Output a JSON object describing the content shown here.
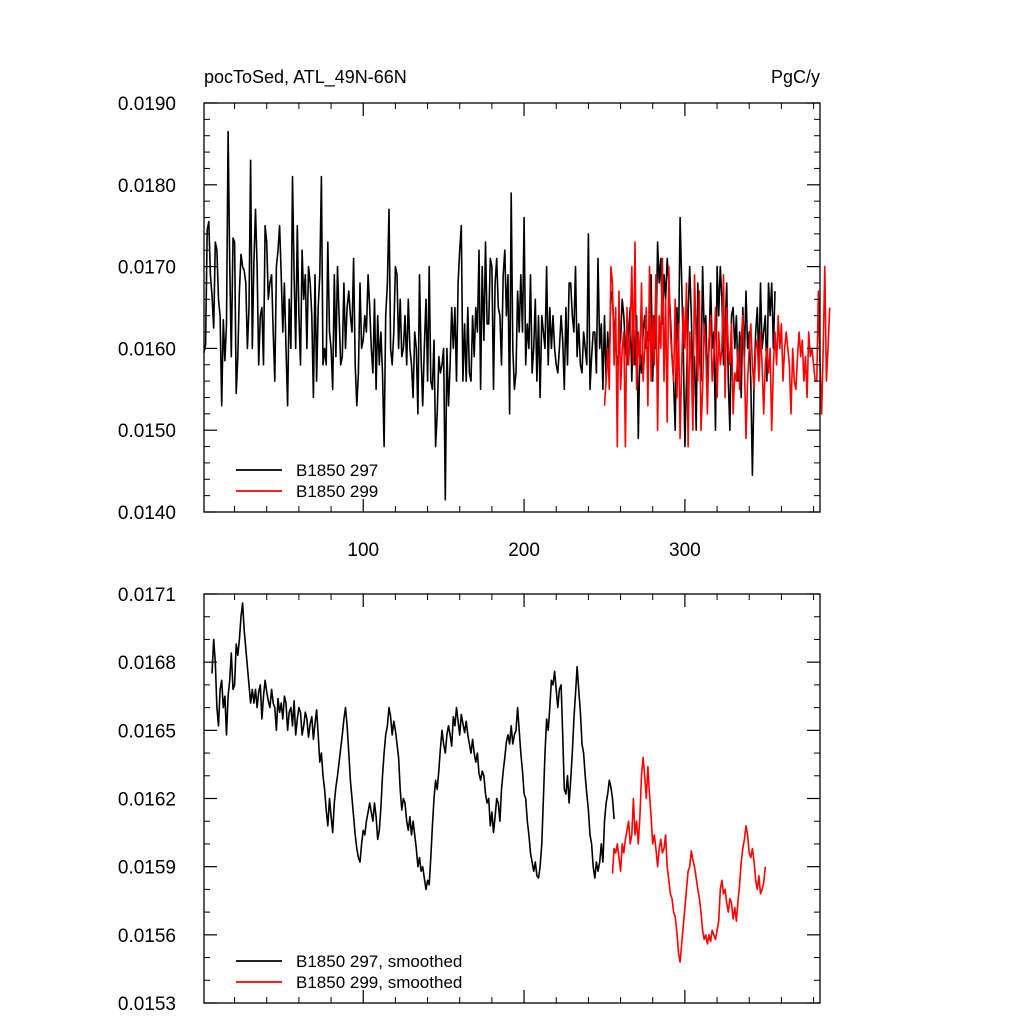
{
  "chart_data": [
    {
      "type": "line",
      "title": "pocToSed, ATL_49N-66N",
      "units": "PgC/y",
      "xlim": [
        1,
        384
      ],
      "ylim": [
        0.014,
        0.019
      ],
      "xticks": [
        100,
        200,
        300
      ],
      "xticklabels": [
        "100",
        "200",
        "300"
      ],
      "yticks": [
        0.014,
        0.015,
        0.016,
        0.017,
        0.018,
        0.019
      ],
      "yticklabels": [
        "0.0140",
        "0.0150",
        "0.0160",
        "0.0170",
        "0.0180",
        "0.0190"
      ],
      "legend_position": "bottom-left",
      "series": [
        {
          "name": "B1850 297",
          "color": "#000000",
          "x_start": 1,
          "values": [
            0.01595,
            0.01605,
            0.01745,
            0.01755,
            0.0169,
            0.01665,
            0.01625,
            0.0173,
            0.0172,
            0.0166,
            0.0164,
            0.0153,
            0.01635,
            0.01585,
            0.0163,
            0.01865,
            0.01705,
            0.0159,
            0.01735,
            0.0173,
            0.01545,
            0.0159,
            0.0167,
            0.01715,
            0.017,
            0.01695,
            0.0168,
            0.016,
            0.0165,
            0.0183,
            0.016,
            0.01705,
            0.0177,
            0.017,
            0.0158,
            0.0164,
            0.0165,
            0.0158,
            0.0175,
            0.0173,
            0.0166,
            0.0168,
            0.0169,
            0.0162,
            0.0156,
            0.017,
            0.0172,
            0.0175,
            0.0169,
            0.0162,
            0.0168,
            0.016,
            0.0153,
            0.0166,
            0.016,
            0.0181,
            0.0169,
            0.016,
            0.0175,
            0.0164,
            0.0158,
            0.0172,
            0.0166,
            0.0169,
            0.016,
            0.017,
            0.0168,
            0.0164,
            0.0154,
            0.0169,
            0.0156,
            0.0165,
            0.0169,
            0.0181,
            0.0158,
            0.016,
            0.0158,
            0.0173,
            0.0162,
            0.016,
            0.0155,
            0.0169,
            0.0159,
            0.017,
            0.0164,
            0.0158,
            0.0159,
            0.0168,
            0.016,
            0.0165,
            0.0167,
            0.0164,
            0.0162,
            0.0171,
            0.0158,
            0.0153,
            0.0157,
            0.0168,
            0.016,
            0.0161,
            0.0164,
            0.0162,
            0.0169,
            0.0165,
            0.016,
            0.0157,
            0.0166,
            0.0155,
            0.0164,
            0.0158,
            0.0162,
            0.0157,
            0.0148,
            0.0164,
            0.0168,
            0.0177,
            0.016,
            0.0158,
            0.0162,
            0.017,
            0.0169,
            0.016,
            0.0166,
            0.0159,
            0.016,
            0.0164,
            0.0158,
            0.0166,
            0.016,
            0.0158,
            0.0154,
            0.0162,
            0.016,
            0.0152,
            0.0169,
            0.0159,
            0.0153,
            0.016,
            0.0166,
            0.0156,
            0.017,
            0.0156,
            0.0155,
            0.0161,
            0.0148,
            0.0152,
            0.0159,
            0.0157,
            0.0158,
            0.016,
            0.01415,
            0.016,
            0.0153,
            0.0158,
            0.0165,
            0.016,
            0.0165,
            0.0156,
            0.0168,
            0.0172,
            0.0175,
            0.0156,
            0.0163,
            0.0156,
            0.0165,
            0.0157,
            0.0156,
            0.0164,
            0.0159,
            0.0165,
            0.0162,
            0.0172,
            0.0155,
            0.017,
            0.0161,
            0.0173,
            0.0163,
            0.0163,
            0.0171,
            0.017,
            0.0155,
            0.0168,
            0.0171,
            0.0165,
            0.0164,
            0.0158,
            0.0169,
            0.0172,
            0.0164,
            0.0169,
            0.0152,
            0.0179,
            0.016,
            0.0155,
            0.0157,
            0.0167,
            0.0162,
            0.0169,
            0.0162,
            0.0176,
            0.0158,
            0.0163,
            0.016,
            0.0169,
            0.0157,
            0.016,
            0.0166,
            0.0156,
            0.0164,
            0.0154,
            0.0164,
            0.0162,
            0.016,
            0.017,
            0.0158,
            0.0165,
            0.016,
            0.0164,
            0.016,
            0.0158,
            0.0157,
            0.016,
            0.0164,
            0.0161,
            0.0155,
            0.0165,
            0.0158,
            0.0168,
            0.0168,
            0.0164,
            0.0162,
            0.017,
            0.0159,
            0.0163,
            0.0158,
            0.0157,
            0.0162,
            0.016,
            0.0158,
            0.0174,
            0.0155,
            0.0159,
            0.0162,
            0.0162,
            0.0157,
            0.0171,
            0.016,
            0.0163,
            0.0155,
            0.0164,
            0.0156,
            0.0162,
            0.0158,
            0.0167,
            0.0166,
            0.0162,
            0.016,
            0.0158,
            0.016,
            0.0161,
            0.0166,
            0.0164,
            0.016,
            0.0158,
            0.0162,
            0.0165,
            0.0156,
            0.0164,
            0.0158,
            0.0164,
            0.0149,
            0.016,
            0.0157,
            0.0162,
            0.0164,
            0.016,
            0.0162,
            0.0161,
            0.0169,
            0.0156,
            0.0164,
            0.016,
            0.0173,
            0.0168,
            0.0171,
            0.0163,
            0.0169,
            0.0166,
            0.0171,
            0.0168,
            0.0164,
            0.0159,
            0.0156,
            0.015,
            0.0165,
            0.016,
            0.0176,
            0.0168,
            0.016,
            0.0148,
            0.0156,
            0.0164,
            0.017,
            0.0164,
            0.0156,
            0.0159,
            0.015,
            0.0168,
            0.0159,
            0.0156,
            0.017,
            0.0162,
            0.0164,
            0.0156,
            0.016,
            0.0168,
            0.016,
            0.0162,
            0.015,
            0.017,
            0.0164,
            0.017,
            0.0166,
            0.0158,
            0.0162,
            0.0168,
            0.0156,
            0.015,
            0.0164,
            0.0165,
            0.016,
            0.0164,
            0.0156,
            0.0162,
            0.0154,
            0.0165,
            0.0159,
            0.0167,
            0.016,
            0.0162,
            0.0156,
            0.01445,
            0.0156,
            0.0162,
            0.0165,
            0.0158,
            0.0168,
            0.016,
            0.0162,
            0.0164,
            0.0156,
            0.0168,
            0.0164,
            0.0168,
            0.016,
            0.0167
          ]
        },
        {
          "name": "B1850 299",
          "color": "#ff0000",
          "x_start": 250,
          "values": [
            0.0153,
            0.0156,
            0.016,
            0.0155,
            0.017,
            0.0168,
            0.0158,
            0.0165,
            0.0148,
            0.0167,
            0.0155,
            0.016,
            0.0162,
            0.0148,
            0.0165,
            0.0158,
            0.0162,
            0.017,
            0.0158,
            0.0173,
            0.0155,
            0.0162,
            0.0158,
            0.0168,
            0.0156,
            0.016,
            0.0165,
            0.0153,
            0.017,
            0.0156,
            0.0164,
            0.0158,
            0.0169,
            0.015,
            0.0164,
            0.016,
            0.0171,
            0.0156,
            0.0166,
            0.0151,
            0.017,
            0.0162,
            0.0159,
            0.0156,
            0.0166,
            0.0154,
            0.0163,
            0.0149,
            0.0158,
            0.0165,
            0.016,
            0.0168,
            0.0148,
            0.0162,
            0.0158,
            0.015,
            0.0169,
            0.0161,
            0.0156,
            0.0167,
            0.015,
            0.0155,
            0.0163,
            0.016,
            0.0152,
            0.0161,
            0.0164,
            0.0156,
            0.0159,
            0.0165,
            0.0154,
            0.0162,
            0.0158,
            0.016,
            0.0169,
            0.0154,
            0.0165,
            0.016,
            0.0158,
            0.0163,
            0.0152,
            0.0157,
            0.0156,
            0.016,
            0.0155,
            0.0161,
            0.0164,
            0.0158,
            0.0149,
            0.0156,
            0.016,
            0.0163,
            0.0158,
            0.0155,
            0.016,
            0.0161,
            0.0156,
            0.0162,
            0.0158,
            0.0152,
            0.0158,
            0.016,
            0.0157,
            0.016,
            0.015,
            0.0158,
            0.0162,
            0.0158,
            0.0164,
            0.016,
            0.0163,
            0.0156,
            0.016,
            0.0162,
            0.016,
            0.0158,
            0.0152,
            0.016,
            0.0156,
            0.0155,
            0.0159,
            0.0162,
            0.0159,
            0.0161,
            0.0156,
            0.0159,
            0.0154,
            0.0162,
            0.0159,
            0.016,
            0.0158,
            0.0156,
            0.0156,
            0.0167,
            0.0158,
            0.0152,
            0.016,
            0.017,
            0.0156,
            0.016,
            0.0165
          ]
        }
      ]
    },
    {
      "type": "line",
      "xlim": [
        1,
        384
      ],
      "ylim": [
        0.0153,
        0.0171
      ],
      "xticks": [
        100,
        200,
        300
      ],
      "yticks": [
        0.0153,
        0.0156,
        0.0159,
        0.0162,
        0.0165,
        0.0168,
        0.0171
      ],
      "yticklabels": [
        "0.0153",
        "0.0156",
        "0.0159",
        "0.0162",
        "0.0165",
        "0.0168",
        "0.0171"
      ],
      "legend_position": "bottom-left",
      "series": [
        {
          "name": "B1850 297, smoothed",
          "color": "#000000",
          "x_start": 6,
          "values": [
            0.01675,
            0.0169,
            0.0168,
            0.0166,
            0.01652,
            0.01668,
            0.01672,
            0.0166,
            0.01665,
            0.01648,
            0.01665,
            0.01672,
            0.01684,
            0.01668,
            0.0167,
            0.01688,
            0.01683,
            0.0169,
            0.017,
            0.01706,
            0.01694,
            0.01686,
            0.01678,
            0.0167,
            0.01662,
            0.01668,
            0.01662,
            0.01668,
            0.0166,
            0.01667,
            0.0167,
            0.01655,
            0.01665,
            0.01672,
            0.01667,
            0.01663,
            0.0166,
            0.01668,
            0.01662,
            0.0166,
            0.0165,
            0.01664,
            0.01658,
            0.01662,
            0.01655,
            0.01665,
            0.01662,
            0.0165,
            0.01658,
            0.0166,
            0.01652,
            0.01663,
            0.01648,
            0.01655,
            0.0166,
            0.01658,
            0.01648,
            0.01652,
            0.01658,
            0.01655,
            0.01647,
            0.01653,
            0.01656,
            0.01646,
            0.01653,
            0.01659,
            0.01648,
            0.01636,
            0.0164,
            0.0163,
            0.01624,
            0.01615,
            0.01608,
            0.0162,
            0.01612,
            0.01605,
            0.01618,
            0.01625,
            0.0163,
            0.01636,
            0.01642,
            0.01648,
            0.01655,
            0.0166,
            0.01652,
            0.0164,
            0.01628,
            0.0162,
            0.01612,
            0.01604,
            0.01598,
            0.01594,
            0.01592,
            0.016,
            0.01606,
            0.01604,
            0.0161,
            0.01614,
            0.01618,
            0.01614,
            0.0161,
            0.01618,
            0.01612,
            0.01602,
            0.01606,
            0.01616,
            0.0163,
            0.0164,
            0.01648,
            0.01652,
            0.0166,
            0.01656,
            0.01648,
            0.01654,
            0.0165,
            0.01644,
            0.01638,
            0.01624,
            0.01615,
            0.0162,
            0.01618,
            0.0161,
            0.01606,
            0.01612,
            0.01604,
            0.0161,
            0.01604,
            0.01598,
            0.0159,
            0.01594,
            0.01588,
            0.0159,
            0.01585,
            0.0158,
            0.01584,
            0.01582,
            0.01594,
            0.01608,
            0.0162,
            0.01628,
            0.01624,
            0.01632,
            0.01642,
            0.0165,
            0.01644,
            0.0164,
            0.01648,
            0.01652,
            0.01648,
            0.01643,
            0.01656,
            0.01652,
            0.0166,
            0.01654,
            0.01648,
            0.01657,
            0.01653,
            0.01649,
            0.01654,
            0.01648,
            0.01644,
            0.0164,
            0.01646,
            0.0164,
            0.01636,
            0.0164,
            0.01631,
            0.01628,
            0.01632,
            0.0163,
            0.01622,
            0.01618,
            0.0162,
            0.01608,
            0.01614,
            0.01605,
            0.01612,
            0.0162,
            0.01618,
            0.0161,
            0.01624,
            0.01632,
            0.01638,
            0.01645,
            0.01648,
            0.01644,
            0.01652,
            0.01644,
            0.01648,
            0.0165,
            0.0166,
            0.0165,
            0.0164,
            0.01632,
            0.01622,
            0.0162,
            0.0161,
            0.01604,
            0.01596,
            0.01592,
            0.01588,
            0.01592,
            0.01586,
            0.01585,
            0.0159,
            0.016,
            0.0162,
            0.0164,
            0.01655,
            0.0165,
            0.0166,
            0.01672,
            0.0167,
            0.01676,
            0.01668,
            0.0166,
            0.01668,
            0.0167,
            0.01648,
            0.01624,
            0.01622,
            0.0163,
            0.01618,
            0.01628,
            0.0164,
            0.01655,
            0.01666,
            0.01678,
            0.01668,
            0.01658,
            0.01644,
            0.0164,
            0.0163,
            0.01622,
            0.01615,
            0.01604,
            0.016,
            0.0159,
            0.01585,
            0.01592,
            0.01588,
            0.01592,
            0.016,
            0.01592,
            0.0161,
            0.01618,
            0.01622,
            0.01628,
            0.01625,
            0.0162,
            0.01611
          ]
        },
        {
          "name": "B1850 299, smoothed",
          "color": "#ff0000",
          "x_start": 255,
          "values": [
            0.01587,
            0.01598,
            0.01596,
            0.016,
            0.01594,
            0.01588,
            0.016,
            0.01596,
            0.01602,
            0.01606,
            0.0161,
            0.016,
            0.01604,
            0.0162,
            0.01604,
            0.0161,
            0.016,
            0.01612,
            0.0163,
            0.01638,
            0.0163,
            0.0162,
            0.01634,
            0.01622,
            0.01612,
            0.016,
            0.01604,
            0.01598,
            0.0159,
            0.01598,
            0.01602,
            0.01596,
            0.01598,
            0.01604,
            0.0159,
            0.01584,
            0.01578,
            0.01576,
            0.0157,
            0.01568,
            0.01561,
            0.01552,
            0.01548,
            0.01556,
            0.01564,
            0.01572,
            0.0158,
            0.01588,
            0.0159,
            0.01597,
            0.01593,
            0.0159,
            0.01585,
            0.0158,
            0.01576,
            0.0157,
            0.01562,
            0.01558,
            0.0156,
            0.01556,
            0.0156,
            0.01557,
            0.01562,
            0.0156,
            0.01558,
            0.01562,
            0.01566,
            0.0158,
            0.01584,
            0.01578,
            0.0158,
            0.01574,
            0.0157,
            0.01576,
            0.01574,
            0.01567,
            0.01572,
            0.01566,
            0.01575,
            0.01582,
            0.01592,
            0.01598,
            0.01602,
            0.01608,
            0.01604,
            0.01596,
            0.01594,
            0.01598,
            0.01592,
            0.01584,
            0.0158,
            0.01586,
            0.01578,
            0.0158,
            0.01583,
            0.0159
          ]
        }
      ]
    }
  ]
}
